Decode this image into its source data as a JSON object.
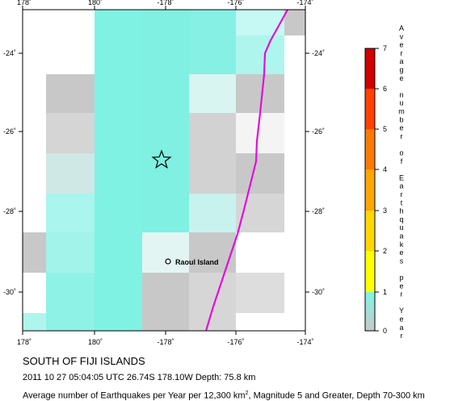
{
  "map": {
    "lon_labels": [
      "178˚",
      "180˚",
      "-178˚",
      "-176˚",
      "-174˚"
    ],
    "lat_labels": [
      "-24˚",
      "-26˚",
      "-28˚",
      "-30˚"
    ],
    "place_label": "Raoul Island",
    "epicenter_symbol": "star-icon",
    "plate_boundary_color": "#e010d8",
    "grid_legend": {
      "zero_color": "#c8c8c8",
      "low_color": "#80f0e8"
    }
  },
  "colorbar": {
    "title": "Average number of Earthquakes per Year",
    "ticks": [
      "0",
      "1",
      "2",
      "3",
      "4",
      "5",
      "6",
      "7"
    ],
    "colors": [
      "#c8c8c8",
      "#7ff5e5",
      "#ffff00",
      "#ffd700",
      "#ffa500",
      "#ff7a00",
      "#ff4000",
      "#e00000",
      "#a00000"
    ]
  },
  "captions": {
    "region": "SOUTH OF FIJI ISLANDS",
    "event": "2011 10 27 05:04:05 UTC 26.74S 178.10W Depth: 75.8 km",
    "description_prefix": "Average number of Earthquakes per Year per 12,300 km",
    "description_sup": "2",
    "description_suffix": ", Magnitude 5 and Greater, Depth 70-300 km"
  }
}
